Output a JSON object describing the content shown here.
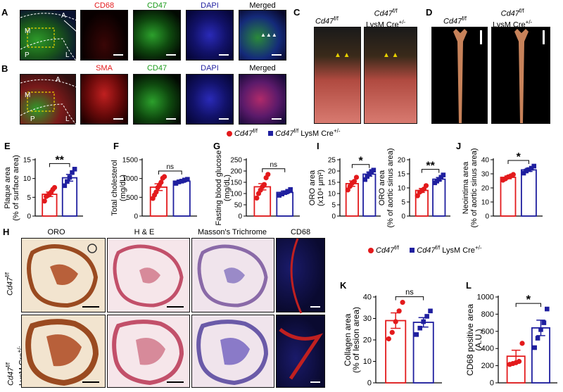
{
  "panelA": {
    "letter": "A",
    "titles": [
      "CD68",
      "CD47",
      "DAPI",
      "Merged"
    ],
    "region_labels": [
      "M",
      "A",
      "P",
      "L"
    ]
  },
  "panelB": {
    "letter": "B",
    "titles": [
      "SMA",
      "CD47",
      "DAPI",
      "Merged"
    ],
    "region_labels": [
      "M",
      "A",
      "P",
      "L"
    ]
  },
  "panelC": {
    "letter": "C",
    "geno1": "Cd47",
    "geno1_sup": "f/f",
    "geno2": "Cd47",
    "geno2_sup": "f/f",
    "geno2_line2": "LysM Cre",
    "geno2_line2_sup": "+/-"
  },
  "panelD": {
    "letter": "D",
    "geno1": "Cd47",
    "geno1_sup": "f/f",
    "geno2": "Cd47",
    "geno2_sup": "f/f",
    "geno2_line2": "LysM Cre",
    "geno2_line2_sup": "+/-"
  },
  "legend_top": {
    "ctrl": "Cd47",
    "ctrl_sup": "f/f",
    "ko": "Cd47",
    "ko_sup": "f/f",
    "ko_suffix": " LysM Cre",
    "ko_suffix_sup": "+/-"
  },
  "legend_bottom": {
    "ctrl": "Cd47",
    "ctrl_sup": "f/f",
    "ko": "Cd47",
    "ko_sup": "f/f",
    "ko_suffix": " LysM Cre",
    "ko_suffix_sup": "+/-"
  },
  "panelH": {
    "letter": "H",
    "titles": [
      "ORO",
      "H & E",
      "Masson's Trichrome",
      "CD68"
    ],
    "row1": "Cd47",
    "row1_sup": "f/f",
    "row2": "Cd47",
    "row2_sup": "f/f",
    "row2_line2": "LysM Cre",
    "row2_line2_sup": "+/-"
  },
  "colors": {
    "ctrl": "#e31a1c",
    "ko": "#1f1f9f"
  },
  "chart_data": [
    {
      "panel": "E",
      "type": "bar",
      "ylabel": "Plaque area (% of surface area)",
      "ylim": [
        0,
        15
      ],
      "yticks": [
        0,
        5,
        10,
        15
      ],
      "sig": "**",
      "series": [
        {
          "name": "Cd47f/f",
          "mean": 5.8,
          "sem": 0.6,
          "points": [
            4.0,
            5.2,
            5.5,
            5.9,
            6.4,
            7.1,
            7.6
          ]
        },
        {
          "name": "Cd47f/f LysM Cre+/-",
          "mean": 10.2,
          "sem": 0.9,
          "points": [
            8.1,
            9.2,
            10.3,
            11.6,
            12.5
          ]
        }
      ]
    },
    {
      "panel": "F",
      "type": "bar",
      "ylabel": "Total cholesterol (mg/dL)",
      "ylim": [
        0,
        1500
      ],
      "yticks": [
        0,
        500,
        1000,
        1500
      ],
      "sig": "ns",
      "series": [
        {
          "name": "Cd47f/f",
          "mean": 770,
          "sem": 90,
          "points": [
            470,
            560,
            640,
            760,
            830,
            900,
            1010,
            1050
          ]
        },
        {
          "name": "Cd47f/f LysM Cre+/-",
          "mean": 930,
          "sem": 30,
          "points": [
            870,
            910,
            930,
            960,
            980
          ]
        }
      ]
    },
    {
      "panel": "G",
      "type": "bar",
      "ylabel": "Fasting blood glucose (mg/dL)",
      "ylim": [
        0,
        250
      ],
      "yticks": [
        0,
        50,
        100,
        150,
        200,
        250
      ],
      "sig": "ns",
      "series": [
        {
          "name": "Cd47f/f",
          "mean": 130,
          "sem": 14,
          "points": [
            80,
            100,
            115,
            130,
            140,
            170,
            185
          ]
        },
        {
          "name": "Cd47f/f LysM Cre+/-",
          "mean": 105,
          "sem": 6,
          "points": [
            92,
            98,
            104,
            110,
            118
          ]
        }
      ]
    },
    {
      "panel": "I",
      "type": "bar",
      "ylabel": "ORO area (x10⁴ μm²)",
      "ylim": [
        0,
        25
      ],
      "yticks": [
        0,
        5,
        10,
        15,
        20,
        25
      ],
      "sig": "*",
      "series": [
        {
          "name": "Cd47f/f",
          "mean": 14.4,
          "sem": 1.2,
          "points": [
            11.6,
            13.2,
            14.6,
            15.4,
            17.2
          ]
        },
        {
          "name": "Cd47f/f LysM Cre+/-",
          "mean": 18.6,
          "sem": 0.9,
          "points": [
            16.2,
            17.6,
            18.8,
            19.8,
            20.4
          ]
        }
      ]
    },
    {
      "panel": "I2",
      "type": "bar",
      "ylabel": "ORO area (% of aortic sinus area)",
      "ylim": [
        0,
        20
      ],
      "yticks": [
        0,
        5,
        10,
        15,
        20
      ],
      "sig": "**",
      "series": [
        {
          "name": "Cd47f/f",
          "mean": 9.1,
          "sem": 0.7,
          "points": [
            7.2,
            8.5,
            9.0,
            9.6,
            10.8
          ]
        },
        {
          "name": "Cd47f/f LysM Cre+/-",
          "mean": 13.1,
          "sem": 0.6,
          "points": [
            11.8,
            12.4,
            13.0,
            13.8,
            14.6
          ]
        }
      ]
    },
    {
      "panel": "J",
      "type": "bar",
      "ylabel": "Neointima area (% of aortic sinus area)",
      "ylim": [
        0,
        40
      ],
      "yticks": [
        0,
        10,
        20,
        30,
        40
      ],
      "sig": "*",
      "series": [
        {
          "name": "Cd47f/f",
          "mean": 27.5,
          "sem": 1.0,
          "points": [
            25.5,
            26.5,
            27.8,
            28.5,
            29.5
          ]
        },
        {
          "name": "Cd47f/f LysM Cre+/-",
          "mean": 32.8,
          "sem": 1.1,
          "points": [
            30.5,
            32.0,
            33.0,
            34.0,
            35.5
          ]
        }
      ]
    },
    {
      "panel": "K",
      "type": "bar",
      "ylabel": "Collagen area (% of lesion area)",
      "ylim": [
        0,
        40
      ],
      "yticks": [
        0,
        10,
        20,
        30,
        40
      ],
      "sig": "ns",
      "series": [
        {
          "name": "Cd47f/f",
          "mean": 29.0,
          "sem": 3.6,
          "points": [
            20.5,
            23.5,
            28.5,
            33.5,
            37.5
          ]
        },
        {
          "name": "Cd47f/f LysM Cre+/-",
          "mean": 28.2,
          "sem": 2.2,
          "points": [
            22.5,
            25.5,
            28.5,
            31.0,
            33.5
          ]
        }
      ]
    },
    {
      "panel": "L",
      "type": "bar",
      "ylabel": "CD68 positive area (A.U.)",
      "ylim": [
        0,
        1000
      ],
      "yticks": [
        0,
        200,
        400,
        600,
        800,
        1000
      ],
      "sig": "*",
      "series": [
        {
          "name": "Cd47f/f",
          "mean": 310,
          "sem": 70,
          "points": [
            215,
            225,
            235,
            250,
            460
          ]
        },
        {
          "name": "Cd47f/f LysM Cre+/-",
          "mean": 640,
          "sem": 90,
          "points": [
            410,
            520,
            620,
            700,
            860
          ]
        }
      ]
    }
  ]
}
